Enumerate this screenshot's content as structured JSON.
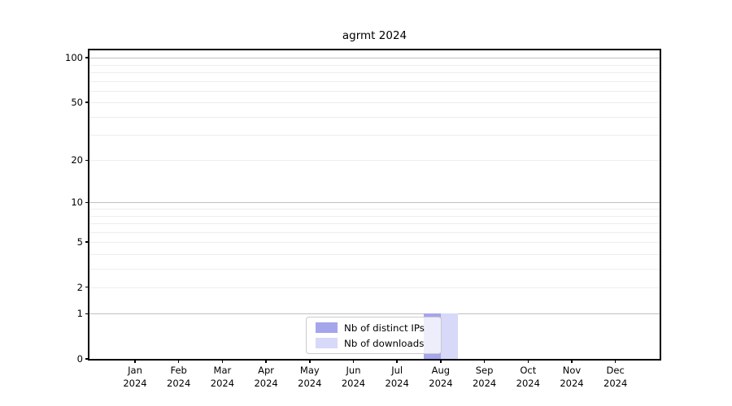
{
  "figure": {
    "title": "agrmt 2024",
    "background_color": "#ffffff"
  },
  "chart_data": {
    "type": "bar",
    "title": "agrmt 2024",
    "xlabel": "",
    "ylabel": "",
    "categories": [
      "Jan",
      "Feb",
      "Mar",
      "Apr",
      "May",
      "Jun",
      "Jul",
      "Aug",
      "Sep",
      "Oct",
      "Nov",
      "Dec"
    ],
    "x_year_label": "2024",
    "series": [
      {
        "name": "Nb of distinct IPs",
        "color": "#a5a5ec",
        "values": [
          0,
          0,
          0,
          0,
          0,
          0,
          0,
          1,
          0,
          0,
          0,
          0
        ]
      },
      {
        "name": "Nb of downloads",
        "color": "#d8d8f8",
        "values": [
          0,
          0,
          0,
          0,
          0,
          0,
          0,
          1,
          0,
          0,
          0,
          0
        ]
      }
    ],
    "yscale": "log1p",
    "ylim": [
      0,
      110
    ],
    "yticks": [
      100,
      50,
      20,
      10,
      5,
      2,
      1,
      0
    ],
    "major_gridline_values": [
      100,
      10,
      1
    ],
    "minor_gridline_values": [
      90,
      80,
      70,
      60,
      50,
      40,
      30,
      20,
      9,
      8,
      7,
      6,
      5,
      4,
      3,
      2
    ],
    "grid": "both",
    "legend": {
      "position": "lower center",
      "labels": [
        "Nb of distinct IPs",
        "Nb of downloads"
      ]
    }
  },
  "colors": {
    "axis": "#000000",
    "major_grid": "#c0c0c0",
    "minor_grid": "#ededed",
    "legend_border": "#cbcbcb",
    "text": "#000000"
  }
}
